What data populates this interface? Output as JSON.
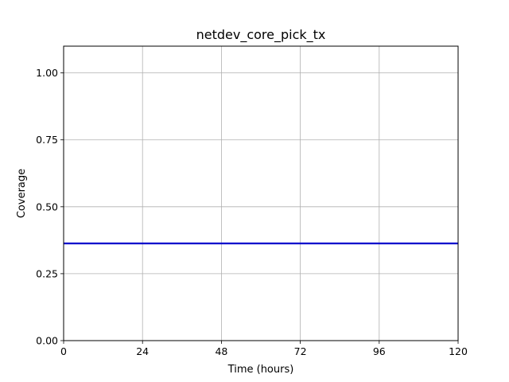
{
  "chart_data": {
    "type": "line",
    "title": "netdev_core_pick_tx",
    "xlabel": "Time (hours)",
    "ylabel": "Coverage",
    "xlim": [
      0,
      120
    ],
    "ylim": [
      0,
      1.1
    ],
    "x_ticks": [
      0,
      24,
      48,
      72,
      96,
      120
    ],
    "x_tick_labels": [
      "0",
      "24",
      "48",
      "72",
      "96",
      "120"
    ],
    "y_ticks": [
      0,
      0.25,
      0.5,
      0.75,
      1.0
    ],
    "y_tick_labels": [
      "0.00",
      "0.25",
      "0.50",
      "0.75",
      "1.00"
    ],
    "grid": true,
    "series": [
      {
        "color": "#0000cc",
        "x": [
          0,
          120
        ],
        "y": [
          0.363,
          0.363
        ]
      }
    ]
  }
}
